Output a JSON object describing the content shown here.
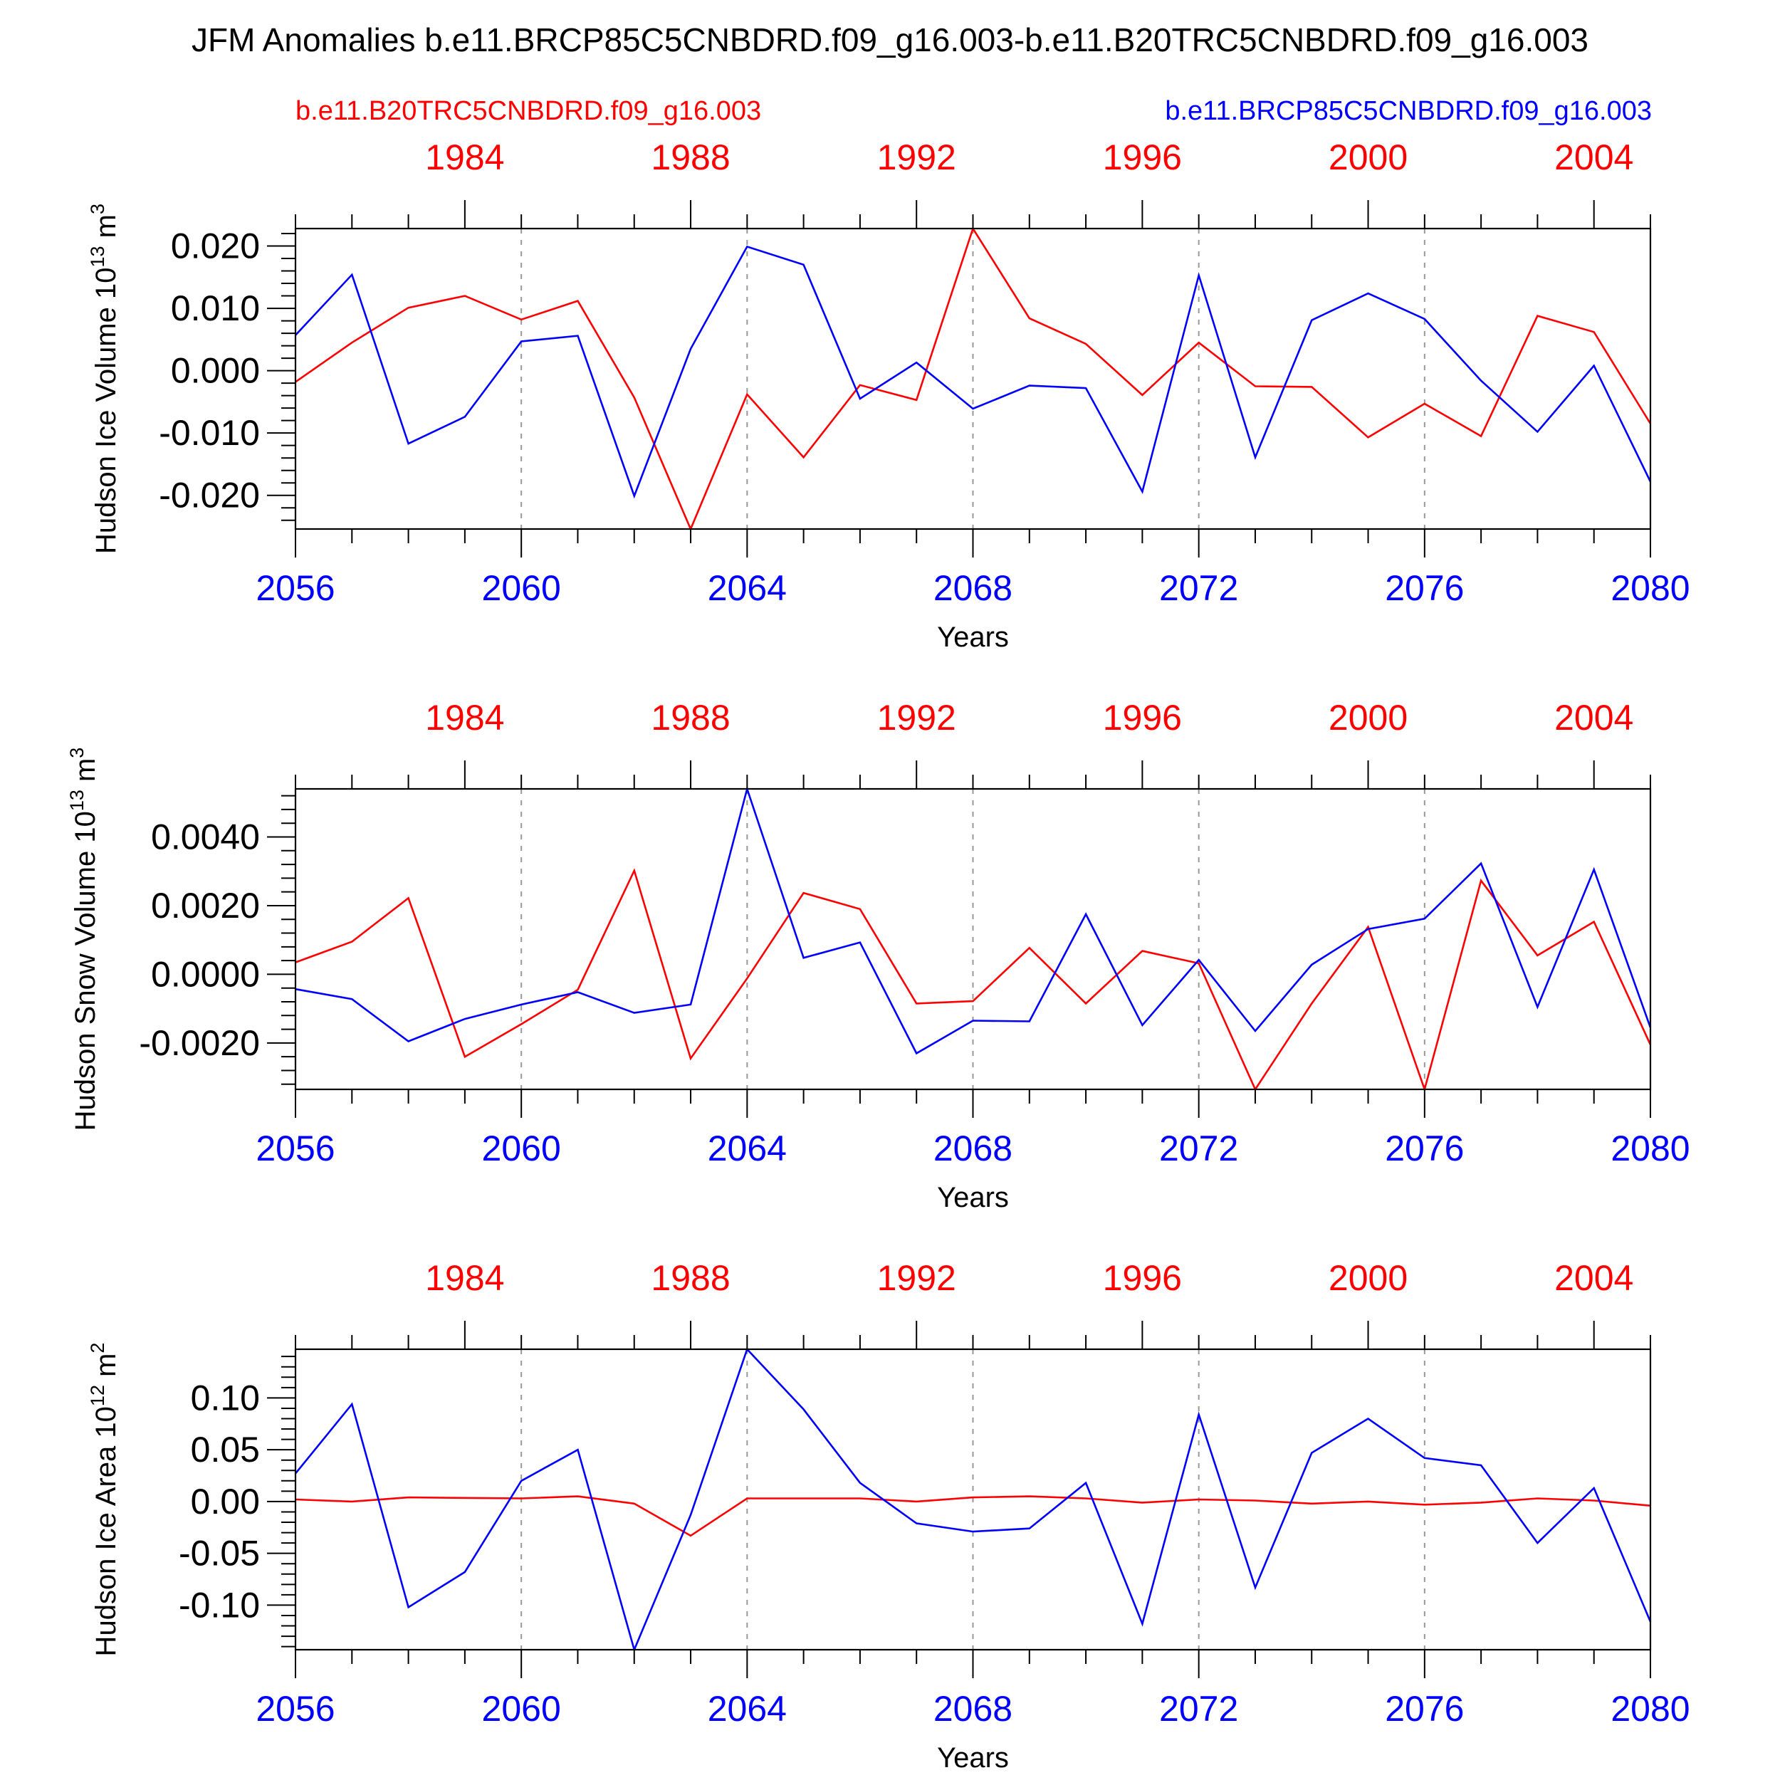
{
  "title": "JFM Anomalies b.e11.BRCP85C5CNBDRD.f09_g16.003-b.e11.B20TRC5CNBDRD.f09_g16.003",
  "legend": {
    "red_label": "b.e11.B20TRC5CNBDRD.f09_g16.003",
    "blue_label": "b.e11.BRCP85C5CNBDRD.f09_g16.003"
  },
  "colors": {
    "red": "#ff0000",
    "blue": "#0000ff",
    "axis": "#000000",
    "grid": "#999999"
  },
  "chart_data": [
    {
      "type": "line",
      "ylabel_main": "Hudson Ice Volume 10",
      "ylabel_exp": "13",
      "ylabel_unit": " m",
      "ylabel_unit_exp": "3",
      "xlabel": "Years",
      "xlim_bottom": [
        2056,
        2080
      ],
      "xlim_top": [
        1981,
        2005
      ],
      "ylim": [
        -0.0254,
        0.0228
      ],
      "yticks": [
        -0.02,
        -0.01,
        0.0,
        0.01,
        0.02
      ],
      "ytick_labels": [
        "-0.020",
        "-0.010",
        "0.000",
        "0.010",
        "0.020"
      ],
      "xticks_bottom": [
        "2056",
        "2060",
        "2064",
        "2068",
        "2072",
        "2076",
        "2080"
      ],
      "xticks_top": [
        "1984",
        "1988",
        "1992",
        "1996",
        "2000",
        "2004"
      ],
      "series": [
        {
          "name": "b.e11.B20TRC5CNBDRD.f09_g16.003",
          "color": "red",
          "values": [
            -0.0018,
            0.0045,
            0.0101,
            0.012,
            0.0082,
            0.0112,
            -0.0043,
            -0.0254,
            -0.0038,
            -0.0139,
            -0.0023,
            -0.0047,
            0.0228,
            0.0084,
            0.0043,
            -0.0039,
            0.0045,
            -0.0025,
            -0.0026,
            -0.0107,
            -0.0053,
            -0.0105,
            0.0088,
            0.0062,
            -0.0085
          ]
        },
        {
          "name": "b.e11.BRCP85C5CNBDRD.f09_g16.003",
          "color": "blue",
          "values": [
            0.0057,
            0.0154,
            -0.0117,
            -0.0074,
            0.0047,
            0.0056,
            -0.0201,
            0.0035,
            0.0199,
            0.017,
            -0.0045,
            0.0013,
            -0.0061,
            -0.0024,
            -0.0028,
            -0.0194,
            0.0153,
            -0.0139,
            0.0081,
            0.0124,
            0.0083,
            -0.0016,
            -0.0098,
            0.0008,
            -0.0178
          ]
        }
      ]
    },
    {
      "type": "line",
      "ylabel_main": "Hudson Snow Volume 10",
      "ylabel_exp": "13",
      "ylabel_unit": " m",
      "ylabel_unit_exp": "3",
      "xlabel": "Years",
      "xlim_bottom": [
        2056,
        2080
      ],
      "xlim_top": [
        1981,
        2005
      ],
      "ylim": [
        -0.00335,
        0.0054
      ],
      "yticks": [
        -0.002,
        0.0,
        0.002,
        0.004
      ],
      "ytick_labels": [
        "-0.0020",
        "0.0000",
        "0.0020",
        "0.0040"
      ],
      "xticks_bottom": [
        "2056",
        "2060",
        "2064",
        "2068",
        "2072",
        "2076",
        "2080"
      ],
      "xticks_top": [
        "1984",
        "1988",
        "1992",
        "1996",
        "2000",
        "2004"
      ],
      "series": [
        {
          "name": "b.e11.B20TRC5CNBDRD.f09_g16.003",
          "color": "red",
          "values": [
            0.00035,
            0.00095,
            0.00222,
            -0.0024,
            -0.00145,
            -0.00045,
            0.00302,
            -0.00245,
            -0.00012,
            0.00237,
            0.0019,
            -0.00085,
            -0.00078,
            0.00077,
            -0.00085,
            0.00068,
            0.00032,
            -0.00335,
            -0.00085,
            0.00138,
            -0.00335,
            0.00273,
            0.00055,
            0.00153,
            -0.00205
          ]
        },
        {
          "name": "b.e11.BRCP85C5CNBDRD.f09_g16.003",
          "color": "blue",
          "values": [
            -0.00043,
            -0.00072,
            -0.00195,
            -0.0013,
            -0.00088,
            -0.00052,
            -0.00112,
            -0.00088,
            0.0054,
            0.00048,
            0.00093,
            -0.0023,
            -0.00135,
            -0.00137,
            0.00175,
            -0.00148,
            0.00042,
            -0.00165,
            0.00028,
            0.00132,
            0.00162,
            0.00323,
            -0.00095,
            0.00305,
            -0.00155
          ]
        }
      ]
    },
    {
      "type": "line",
      "ylabel_main": "Hudson Ice Area 10",
      "ylabel_exp": "12",
      "ylabel_unit": " m",
      "ylabel_unit_exp": "2",
      "xlabel": "Years",
      "xlim_bottom": [
        2056,
        2080
      ],
      "xlim_top": [
        1981,
        2005
      ],
      "ylim": [
        -0.143,
        0.147
      ],
      "yticks": [
        -0.1,
        -0.05,
        0.0,
        0.05,
        0.1
      ],
      "ytick_labels": [
        "-0.10",
        "-0.05",
        "0.00",
        "0.05",
        "0.10"
      ],
      "xticks_bottom": [
        "2056",
        "2060",
        "2064",
        "2068",
        "2072",
        "2076",
        "2080"
      ],
      "xticks_top": [
        "1984",
        "1988",
        "1992",
        "1996",
        "2000",
        "2004"
      ],
      "series": [
        {
          "name": "b.e11.B20TRC5CNBDRD.f09_g16.003",
          "color": "red",
          "values": [
            0.002,
            0.0,
            0.004,
            0.0035,
            0.003,
            0.005,
            -0.002,
            -0.033,
            0.003,
            0.003,
            0.003,
            0.0,
            0.004,
            0.005,
            0.003,
            -0.001,
            0.002,
            0.001,
            -0.002,
            0.0,
            -0.003,
            -0.001,
            0.003,
            0.001,
            -0.004
          ]
        },
        {
          "name": "b.e11.BRCP85C5CNBDRD.f09_g16.003",
          "color": "blue",
          "values": [
            0.027,
            0.094,
            -0.102,
            -0.068,
            0.02,
            0.05,
            -0.143,
            -0.013,
            0.147,
            0.089,
            0.018,
            -0.021,
            -0.029,
            -0.026,
            0.018,
            -0.118,
            0.084,
            -0.083,
            0.047,
            0.08,
            0.042,
            0.035,
            -0.04,
            0.013,
            -0.116
          ]
        }
      ]
    }
  ]
}
